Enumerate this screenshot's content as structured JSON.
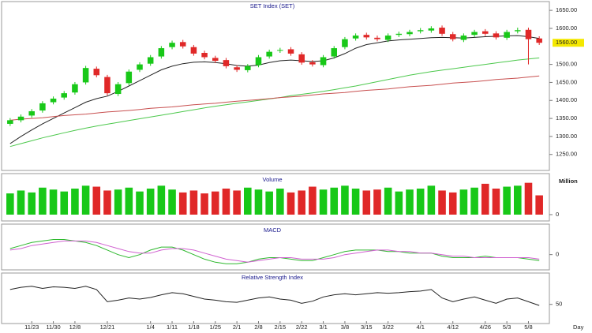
{
  "chart_data": [
    {
      "type": "candlestick",
      "title": "SET Index (SET)",
      "open": [
        1335,
        1345,
        1358,
        1372,
        1395,
        1408,
        1422,
        1450,
        1488,
        1465,
        1418,
        1448,
        1485,
        1502,
        1522,
        1548,
        1562,
        1548,
        1532,
        1518,
        1512,
        1492,
        1484,
        1498,
        1522,
        1538,
        1542,
        1528,
        1506,
        1498,
        1522,
        1548,
        1572,
        1582,
        1574,
        1568,
        1582,
        1584,
        1592,
        1594,
        1602,
        1584,
        1568,
        1582,
        1592,
        1586,
        1574,
        1592,
        1596,
        1572
      ],
      "high": [
        1351,
        1361,
        1376,
        1398,
        1411,
        1426,
        1451,
        1496,
        1494,
        1471,
        1451,
        1486,
        1506,
        1526,
        1551,
        1566,
        1568,
        1554,
        1538,
        1524,
        1518,
        1498,
        1501,
        1526,
        1541,
        1546,
        1548,
        1534,
        1512,
        1526,
        1551,
        1576,
        1586,
        1588,
        1580,
        1586,
        1591,
        1596,
        1601,
        1606,
        1608,
        1590,
        1586,
        1596,
        1598,
        1592,
        1596,
        1602,
        1602,
        1578
      ],
      "low": [
        1329,
        1339,
        1352,
        1366,
        1389,
        1402,
        1416,
        1444,
        1464,
        1414,
        1412,
        1442,
        1479,
        1496,
        1516,
        1542,
        1544,
        1524,
        1514,
        1504,
        1489,
        1479,
        1478,
        1492,
        1516,
        1532,
        1524,
        1499,
        1494,
        1492,
        1516,
        1542,
        1566,
        1569,
        1564,
        1562,
        1576,
        1578,
        1586,
        1588,
        1579,
        1564,
        1562,
        1576,
        1579,
        1569,
        1568,
        1586,
        1500,
        1554
      ],
      "close": [
        1345,
        1355,
        1370,
        1392,
        1405,
        1420,
        1445,
        1490,
        1470,
        1420,
        1445,
        1480,
        1500,
        1520,
        1545,
        1560,
        1550,
        1530,
        1520,
        1510,
        1495,
        1485,
        1495,
        1520,
        1535,
        1540,
        1530,
        1505,
        1500,
        1520,
        1545,
        1570,
        1580,
        1575,
        1570,
        1580,
        1585,
        1590,
        1595,
        1600,
        1585,
        1570,
        1580,
        1590,
        1585,
        1575,
        1590,
        1595,
        1570,
        1560
      ],
      "up_color": "#18c818",
      "down_color": "#e02828",
      "series": [
        {
          "color": "#222222",
          "values": [
            1280,
            1300,
            1318,
            1335,
            1350,
            1365,
            1380,
            1395,
            1405,
            1412,
            1425,
            1440,
            1455,
            1470,
            1485,
            1495,
            1502,
            1506,
            1507,
            1505,
            1502,
            1497,
            1495,
            1498,
            1505,
            1510,
            1512,
            1510,
            1508,
            1510,
            1518,
            1530,
            1545,
            1555,
            1560,
            1565,
            1568,
            1570,
            1572,
            1574,
            1575,
            1574,
            1573,
            1575,
            1577,
            1578,
            1579,
            1580,
            1577,
            1572
          ]
        },
        {
          "color": "#4cc84c",
          "values": [
            1272,
            1280,
            1288,
            1296,
            1303,
            1310,
            1317,
            1323,
            1329,
            1334,
            1339,
            1344,
            1349,
            1354,
            1359,
            1364,
            1369,
            1374,
            1379,
            1384,
            1388,
            1392,
            1396,
            1400,
            1404,
            1408,
            1413,
            1417,
            1421,
            1425,
            1430,
            1435,
            1440,
            1446,
            1452,
            1458,
            1464,
            1470,
            1475,
            1480,
            1484,
            1488,
            1492,
            1496,
            1500,
            1504,
            1508,
            1512,
            1515,
            1518
          ]
        },
        {
          "color": "#c85050",
          "values": [
            1345,
            1348,
            1350,
            1352,
            1355,
            1358,
            1360,
            1362,
            1365,
            1368,
            1370,
            1372,
            1375,
            1378,
            1380,
            1382,
            1385,
            1388,
            1390,
            1392,
            1395,
            1398,
            1400,
            1402,
            1405,
            1408,
            1410,
            1412,
            1415,
            1418,
            1420,
            1422,
            1425,
            1428,
            1430,
            1432,
            1435,
            1438,
            1440,
            1442,
            1445,
            1448,
            1450,
            1452,
            1455,
            1458,
            1460,
            1462,
            1465,
            1468
          ]
        }
      ],
      "ylim": [
        1210,
        1670
      ],
      "yticks": [
        {
          "value": 1250,
          "label": "1250.00"
        },
        {
          "value": 1300,
          "label": "1300.00"
        },
        {
          "value": 1350,
          "label": "1350.00"
        },
        {
          "value": 1400,
          "label": "1400.00"
        },
        {
          "value": 1450,
          "label": "1450.00"
        },
        {
          "value": 1500,
          "label": "1500.00"
        },
        {
          "value": 1600,
          "label": "1600.00"
        },
        {
          "value": 1650,
          "label": "1650.00"
        }
      ],
      "last_label": {
        "value": 1560,
        "label": "1560.00"
      }
    },
    {
      "type": "bar",
      "title": "Volume",
      "y_label": "Million",
      "label_color": "#e8d800",
      "values": [
        22,
        25,
        23,
        28,
        26,
        24,
        27,
        30,
        29,
        25,
        26,
        28,
        24,
        27,
        30,
        26,
        23,
        25,
        22,
        24,
        27,
        25,
        28,
        26,
        24,
        27,
        23,
        25,
        29,
        26,
        28,
        30,
        27,
        25,
        26,
        28,
        24,
        26,
        27,
        30,
        25,
        23,
        26,
        28,
        32,
        27,
        29,
        30,
        33,
        20
      ],
      "ylim": [
        0,
        36
      ],
      "yticks": [
        0
      ]
    },
    {
      "type": "line",
      "title": "MACD",
      "series": [
        {
          "color": "#2db82d",
          "values": [
            4,
            6,
            8,
            9,
            10,
            10,
            9,
            8,
            6,
            3,
            0,
            -2,
            0,
            3,
            5,
            5,
            3,
            0,
            -3,
            -5,
            -6,
            -6,
            -5,
            -3,
            -2,
            -2,
            -3,
            -4,
            -4,
            -2,
            0,
            2,
            3,
            3,
            3,
            2,
            2,
            1,
            1,
            1,
            -1,
            -2,
            -2,
            -2,
            -1,
            -2,
            -2,
            -2,
            -3,
            -4
          ]
        },
        {
          "color": "#d060d0",
          "values": [
            3,
            4,
            6,
            7,
            8,
            9,
            9,
            9,
            8,
            6,
            4,
            2,
            1,
            1,
            3,
            4,
            4,
            3,
            1,
            -1,
            -3,
            -4,
            -5,
            -4,
            -3,
            -2,
            -2,
            -3,
            -3,
            -3,
            -2,
            0,
            1,
            2,
            3,
            3,
            2,
            2,
            1,
            1,
            0,
            -1,
            -1,
            -2,
            -2,
            -2,
            -2,
            -2,
            -2,
            -3
          ]
        }
      ],
      "ylim": [
        -8,
        16
      ],
      "yticks": [
        0
      ]
    },
    {
      "type": "line",
      "title": "Relative Strength Index",
      "x_label": "Day",
      "categories": [
        null,
        null,
        "11/23",
        null,
        "11/30",
        null,
        "12/8",
        null,
        null,
        "12/21",
        null,
        null,
        null,
        "1/4",
        null,
        "1/11",
        null,
        "1/18",
        null,
        "1/25",
        null,
        "2/1",
        null,
        "2/8",
        null,
        "2/15",
        null,
        "2/22",
        null,
        "3/1",
        null,
        "3/8",
        null,
        "3/15",
        null,
        "3/22",
        null,
        null,
        "4/1",
        null,
        null,
        "4/12",
        null,
        null,
        "4/26",
        null,
        "5/3",
        null,
        "5/8",
        null
      ],
      "series": [
        {
          "color": "#222222",
          "values": [
            78,
            82,
            84,
            80,
            83,
            82,
            80,
            84,
            78,
            55,
            58,
            62,
            60,
            63,
            68,
            72,
            70,
            65,
            60,
            58,
            55,
            54,
            58,
            62,
            64,
            60,
            58,
            52,
            56,
            64,
            68,
            70,
            68,
            70,
            72,
            71,
            72,
            74,
            75,
            78,
            62,
            55,
            60,
            64,
            58,
            52,
            60,
            62,
            55,
            48
          ]
        }
      ],
      "ylim": [
        20,
        100
      ],
      "yticks": [
        50
      ]
    }
  ]
}
